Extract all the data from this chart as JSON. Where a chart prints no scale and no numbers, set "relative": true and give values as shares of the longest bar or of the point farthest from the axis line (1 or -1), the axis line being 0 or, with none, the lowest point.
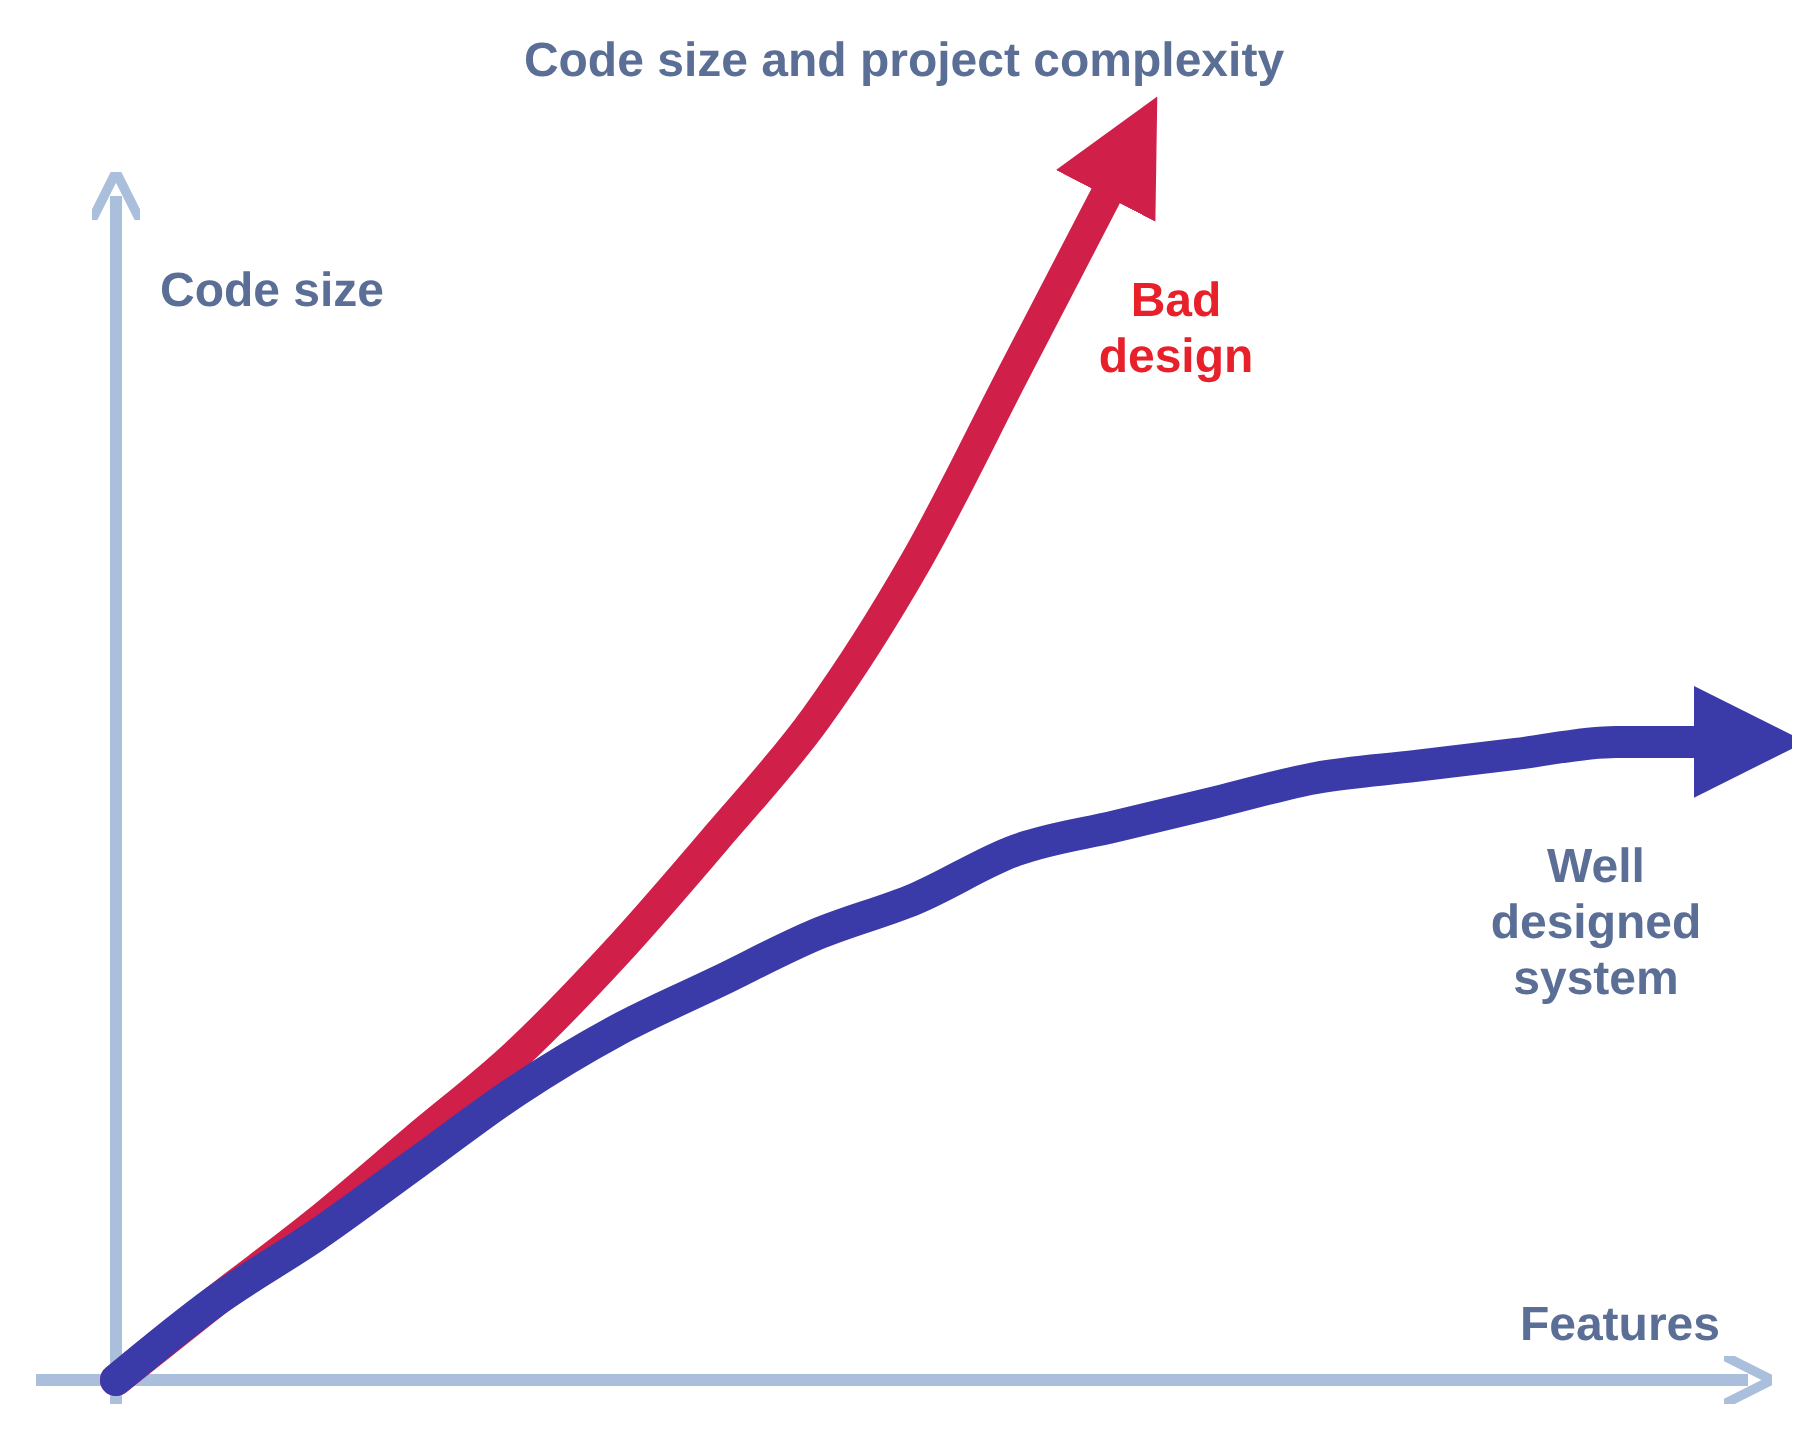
{
  "chart_data": {
    "type": "line",
    "title": "Code size and project complexity",
    "xlabel": "Features",
    "ylabel": "Code size",
    "relative": true,
    "legend": false,
    "marker": "none",
    "line_style": "solid",
    "categories": [
      null,
      null,
      null,
      null,
      null,
      null,
      null,
      null,
      null,
      null,
      null,
      null,
      null,
      null,
      null,
      null,
      null
    ],
    "series": [
      {
        "name": "Bad design",
        "color": "#d0204a",
        "values": [
          0,
          0.066,
          0.13,
          0.2,
          0.27,
          0.355,
          0.45,
          0.55,
          0.68,
          0.84,
          1,
          null,
          null,
          null,
          null,
          null,
          null
        ]
      },
      {
        "name": "Well designed system",
        "color": "#3a3aa8",
        "values": [
          0,
          0.066,
          0.12,
          0.18,
          0.24,
          0.29,
          0.33,
          0.37,
          0.4,
          0.44,
          0.46,
          0.48,
          0.5,
          0.51,
          0.52,
          0.53,
          0.53
        ]
      }
    ]
  }
}
